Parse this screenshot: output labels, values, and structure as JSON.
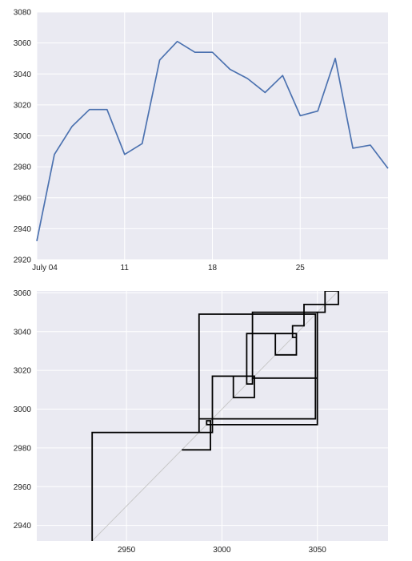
{
  "colors": {
    "background": "#EAEAF2",
    "grid": "#FFFFFF",
    "line": "#4C72B0",
    "staircase": "#000000",
    "diagonal": "#C8C8C8"
  },
  "chart_data": [
    {
      "type": "line",
      "title": "",
      "xlabel": "",
      "ylabel": "",
      "grid": true,
      "x": [
        "2021-07-02",
        "2021-07-03",
        "2021-07-04",
        "2021-07-05",
        "2021-07-06",
        "2021-07-07",
        "2021-07-08",
        "2021-07-09",
        "2021-07-10",
        "2021-07-11",
        "2021-07-12",
        "2021-07-13",
        "2021-07-14",
        "2021-07-15",
        "2021-07-16",
        "2021-07-17",
        "2021-07-18",
        "2021-07-19",
        "2021-07-20",
        "2021-07-21",
        "2021-07-22"
      ],
      "series": [
        {
          "values": [
            2932,
            2988,
            3006,
            3017,
            3017,
            2988,
            2995,
            3049,
            3061,
            3054,
            3054,
            3043,
            3037,
            3028,
            3039,
            3013,
            3016,
            3050,
            2992,
            2994,
            2979
          ]
        }
      ],
      "xlim": [
        "2021-07-02",
        "2021-07-22"
      ],
      "ylim": [
        2920,
        3080
      ],
      "yticks": [
        2920,
        2940,
        2960,
        2980,
        3000,
        3020,
        3040,
        3060,
        3080
      ],
      "xticks": [
        {
          "date": "2021-07-02",
          "label": "July 04"
        },
        {
          "date": "2021-07-07",
          "label": "11"
        },
        {
          "date": "2021-07-12",
          "label": "18"
        },
        {
          "date": "2021-07-17",
          "label": "25"
        }
      ]
    },
    {
      "type": "line",
      "title": "",
      "xlabel": "",
      "ylabel": "",
      "grid": true,
      "xlim": [
        2903,
        3087
      ],
      "ylim": [
        2932,
        3061
      ],
      "xticks": [
        2950,
        3000,
        3050
      ],
      "yticks": [
        2940,
        2960,
        2980,
        3000,
        3020,
        3040,
        3060
      ],
      "diagonal": true,
      "staircase": [
        2932,
        2988,
        2995,
        2988,
        3049,
        2995,
        3017,
        3006,
        3017,
        3016,
        3013,
        3039,
        3028,
        3039,
        3037,
        3043,
        3054,
        3061,
        3054,
        3050,
        3016,
        3050,
        2992,
        2994,
        2979
      ]
    }
  ]
}
